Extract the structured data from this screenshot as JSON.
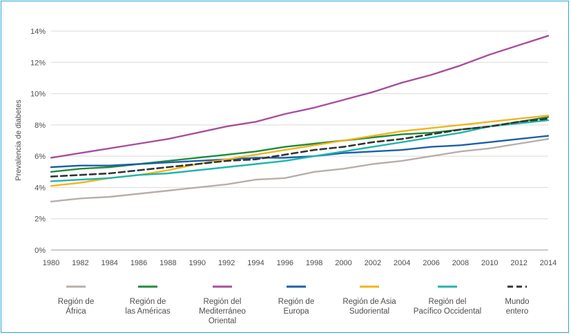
{
  "chart_data": {
    "type": "line",
    "title": "",
    "xlabel": "",
    "ylabel": "Prevalencia de diabetes",
    "x": [
      1980,
      1982,
      1984,
      1986,
      1988,
      1990,
      1992,
      1994,
      1996,
      1998,
      2000,
      2002,
      2004,
      2006,
      2008,
      2010,
      2012,
      2014
    ],
    "xlim": [
      1980,
      2014
    ],
    "ylim": [
      0,
      14
    ],
    "y_ticks": [
      "0%",
      "2%",
      "4%",
      "6%",
      "8%",
      "10%",
      "12%",
      "14%"
    ],
    "x_ticks": [
      "1980",
      "1982",
      "1984",
      "1986",
      "1988",
      "1990",
      "1992",
      "1994",
      "1996",
      "1998",
      "2000",
      "2002",
      "2004",
      "2006",
      "2008",
      "2010",
      "2012",
      "2014"
    ],
    "grid": "horizontal",
    "legend_position": "bottom",
    "series": [
      {
        "name": "Región de África",
        "label_lines": [
          "Región de",
          "África"
        ],
        "color": "#b8aeaa",
        "dash": false,
        "values": [
          3.1,
          3.3,
          3.4,
          3.6,
          3.8,
          4.0,
          4.2,
          4.5,
          4.6,
          5.0,
          5.2,
          5.5,
          5.7,
          6.0,
          6.3,
          6.5,
          6.8,
          7.1
        ]
      },
      {
        "name": "Región de las Américas",
        "label_lines": [
          "Región de",
          "las Américas"
        ],
        "color": "#1f8c3b",
        "dash": false,
        "values": [
          5.0,
          5.2,
          5.3,
          5.5,
          5.7,
          5.9,
          6.1,
          6.3,
          6.6,
          6.8,
          7.0,
          7.2,
          7.4,
          7.5,
          7.7,
          7.9,
          8.2,
          8.5
        ]
      },
      {
        "name": "Región del Mediterráneo Oriental",
        "label_lines": [
          "Región del",
          "Mediterráneo",
          "Oriental"
        ],
        "color": "#a84e9e",
        "dash": false,
        "values": [
          5.9,
          6.2,
          6.5,
          6.8,
          7.1,
          7.5,
          7.9,
          8.2,
          8.7,
          9.1,
          9.6,
          10.1,
          10.7,
          11.2,
          11.8,
          12.5,
          13.1,
          13.7
        ]
      },
      {
        "name": "Región de Europa",
        "label_lines": [
          "Región de",
          "Europa"
        ],
        "color": "#1b5fa8",
        "dash": false,
        "values": [
          5.3,
          5.4,
          5.4,
          5.5,
          5.6,
          5.7,
          5.8,
          5.9,
          5.9,
          6.0,
          6.2,
          6.3,
          6.4,
          6.6,
          6.7,
          6.9,
          7.1,
          7.3
        ]
      },
      {
        "name": "Región de Asia Sudoriental",
        "label_lines": [
          "Región de Asia",
          "Sudoriental"
        ],
        "color": "#f2b418",
        "dash": false,
        "values": [
          4.1,
          4.3,
          4.6,
          4.8,
          5.1,
          5.5,
          5.8,
          6.1,
          6.4,
          6.7,
          7.0,
          7.3,
          7.6,
          7.8,
          8.0,
          8.2,
          8.4,
          8.6
        ]
      },
      {
        "name": "Región del Pacífico Occidental",
        "label_lines": [
          "Región del",
          "Pacífico Occidental"
        ],
        "color": "#1fb4ad",
        "dash": false,
        "values": [
          4.4,
          4.5,
          4.6,
          4.8,
          4.9,
          5.1,
          5.3,
          5.5,
          5.7,
          6.0,
          6.3,
          6.6,
          6.9,
          7.2,
          7.5,
          7.9,
          8.1,
          8.3
        ]
      },
      {
        "name": "Mundo entero",
        "label_lines": [
          "Mundo",
          "entero"
        ],
        "color": "#333333",
        "dash": true,
        "values": [
          4.7,
          4.8,
          4.9,
          5.1,
          5.3,
          5.5,
          5.7,
          5.8,
          6.1,
          6.4,
          6.6,
          6.9,
          7.1,
          7.4,
          7.7,
          7.9,
          8.2,
          8.4
        ]
      }
    ]
  }
}
